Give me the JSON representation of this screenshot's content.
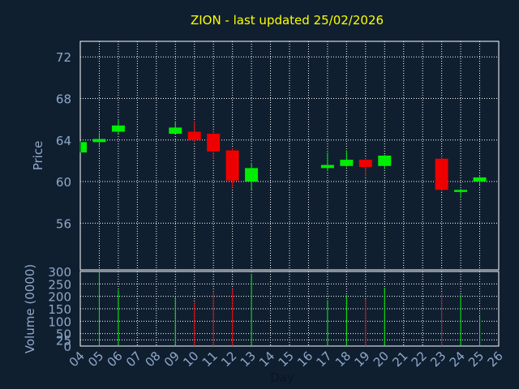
{
  "chart_data": {
    "type": "candlestick",
    "title": "ZION - last updated 25/02/2026",
    "xlabel": "Day",
    "price_panel": {
      "ylabel": "Price",
      "ylim": [
        51.5,
        73.5
      ],
      "yticks": [
        56,
        60,
        64,
        68,
        72
      ]
    },
    "volume_panel": {
      "ylabel": "Volume (0000)",
      "ylim": [
        0,
        300
      ],
      "yticks": [
        0,
        25,
        50,
        100,
        150,
        200,
        250,
        300
      ]
    },
    "x_days": [
      "04",
      "05",
      "06",
      "07",
      "08",
      "09",
      "10",
      "11",
      "12",
      "13",
      "14",
      "15",
      "16",
      "17",
      "18",
      "19",
      "20",
      "21",
      "22",
      "23",
      "24",
      "25",
      "26"
    ],
    "grid": true,
    "colors": {
      "up": "#00ee00",
      "down": "#ee0000",
      "grid": "#ffffff",
      "axis_text": "#8fa8c8",
      "title": "#ffff00",
      "background": "#0f1f30",
      "plot_background": "#0f1f30"
    },
    "candles": [
      {
        "day": "04",
        "open": 62.8,
        "high": 63.9,
        "low": 62.8,
        "close": 63.8,
        "volume": 0
      },
      {
        "day": "05",
        "open": 63.8,
        "high": 64.7,
        "low": 63.3,
        "close": 64.1,
        "volume": 300
      },
      {
        "day": "06",
        "open": 64.8,
        "high": 66.0,
        "low": 64.6,
        "close": 65.4,
        "volume": 225
      },
      {
        "day": "09",
        "open": 64.6,
        "high": 65.8,
        "low": 64.6,
        "close": 65.2,
        "volume": 200
      },
      {
        "day": "10",
        "open": 64.8,
        "high": 65.8,
        "low": 63.8,
        "close": 64.0,
        "volume": 175
      },
      {
        "day": "11",
        "open": 64.6,
        "high": 64.9,
        "low": 62.2,
        "close": 62.9,
        "volume": 220
      },
      {
        "day": "12",
        "open": 63.0,
        "high": 63.2,
        "low": 59.4,
        "close": 60.1,
        "volume": 230
      },
      {
        "day": "13",
        "open": 60.0,
        "high": 61.8,
        "low": 59.2,
        "close": 61.3,
        "volume": 290
      },
      {
        "day": "17",
        "open": 61.3,
        "high": 62.8,
        "low": 61.0,
        "close": 61.6,
        "volume": 185
      },
      {
        "day": "18",
        "open": 61.5,
        "high": 63.0,
        "low": 61.4,
        "close": 62.1,
        "volume": 205
      },
      {
        "day": "19",
        "open": 62.1,
        "high": 62.3,
        "low": 60.5,
        "close": 61.4,
        "volume": 190
      },
      {
        "day": "20",
        "open": 61.5,
        "high": 62.6,
        "low": 61.2,
        "close": 62.5,
        "volume": 235
      },
      {
        "day": "23",
        "open": 62.2,
        "high": 62.6,
        "low": 59.0,
        "close": 59.2,
        "volume": 215
      },
      {
        "day": "24",
        "open": 59.0,
        "high": 59.3,
        "low": 58.4,
        "close": 59.2,
        "volume": 205
      },
      {
        "day": "25",
        "open": 60.0,
        "high": 60.6,
        "low": 59.7,
        "close": 60.4,
        "volume": 120
      }
    ]
  }
}
